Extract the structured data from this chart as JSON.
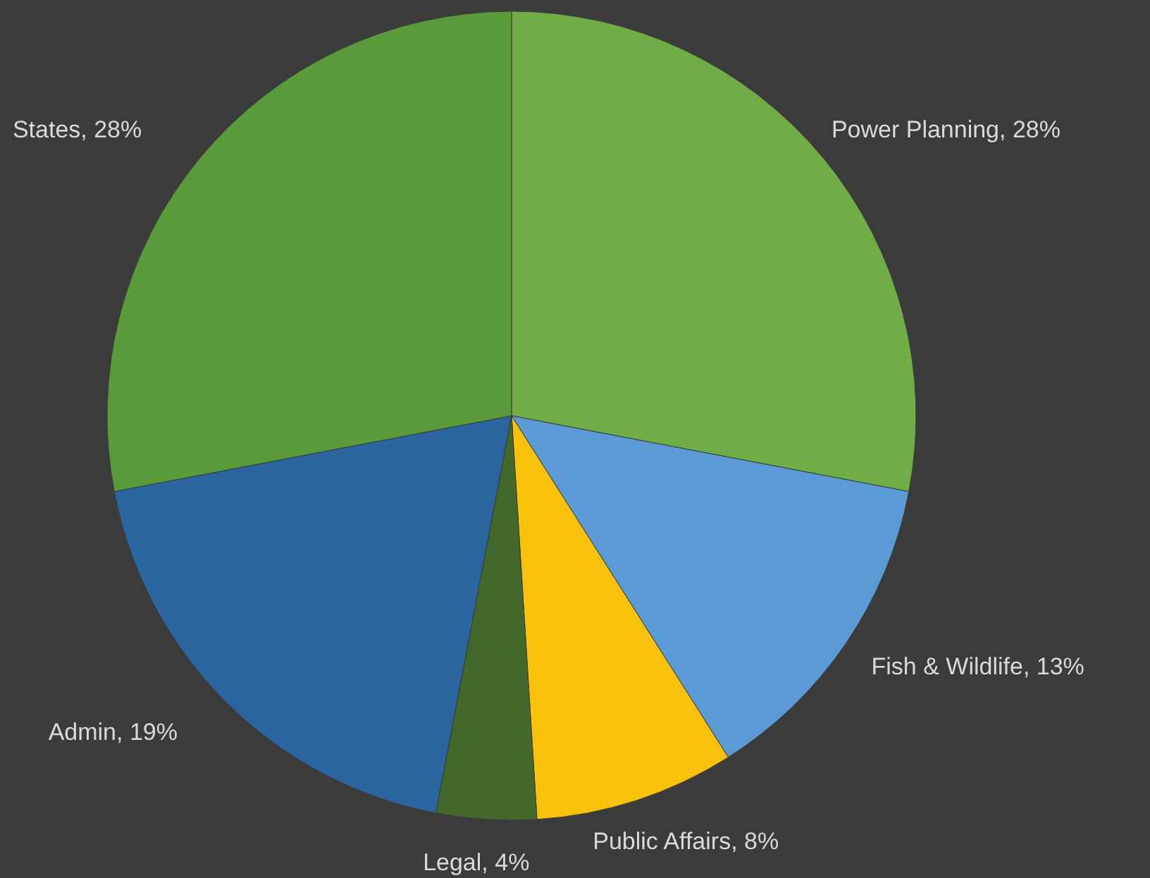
{
  "chart_data": {
    "type": "pie",
    "categories": [
      "Power Planning",
      "Fish & Wildlife",
      "Public Affairs",
      "Legal",
      "Admin",
      "States"
    ],
    "values": [
      28,
      13,
      8,
      4,
      19,
      28
    ],
    "colors": [
      "#70ad47",
      "#5b9bd5",
      "#f7c10c",
      "#43682b",
      "#2a65a0",
      "#5a9a3a"
    ],
    "value_labels": [
      "28%",
      "13%",
      "8%",
      "4%",
      "19%",
      "28%"
    ]
  }
}
